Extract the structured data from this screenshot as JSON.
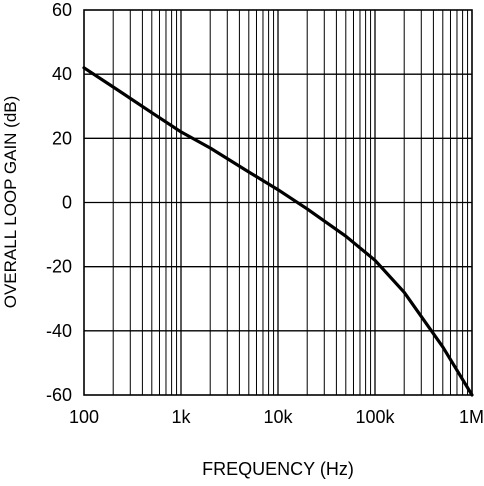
{
  "chart_data": {
    "type": "line",
    "title": "",
    "xlabel": "FREQUENCY (Hz)",
    "ylabel": "OVERALL LOOP GAIN (dB)",
    "x_scale": "log",
    "xlim": [
      100,
      1000000
    ],
    "ylim": [
      -60,
      60
    ],
    "grid": true,
    "x_ticks": [
      {
        "value": 100,
        "label": "100"
      },
      {
        "value": 1000,
        "label": "1k"
      },
      {
        "value": 10000,
        "label": "10k"
      },
      {
        "value": 100000,
        "label": "100k"
      },
      {
        "value": 1000000,
        "label": "1M"
      }
    ],
    "y_ticks": [
      {
        "value": 60,
        "label": "60"
      },
      {
        "value": 40,
        "label": "40"
      },
      {
        "value": 20,
        "label": "20"
      },
      {
        "value": 0,
        "label": "0"
      },
      {
        "value": -20,
        "label": "-20"
      },
      {
        "value": -40,
        "label": "-40"
      },
      {
        "value": -60,
        "label": "-60"
      }
    ],
    "series": [
      {
        "color": "#000000",
        "points": [
          {
            "x": 100,
            "y": 42
          },
          {
            "x": 200,
            "y": 36
          },
          {
            "x": 500,
            "y": 28
          },
          {
            "x": 1000,
            "y": 22
          },
          {
            "x": 2000,
            "y": 17
          },
          {
            "x": 5000,
            "y": 9.5
          },
          {
            "x": 10000,
            "y": 4
          },
          {
            "x": 20000,
            "y": -2
          },
          {
            "x": 50000,
            "y": -10.5
          },
          {
            "x": 100000,
            "y": -18
          },
          {
            "x": 200000,
            "y": -28
          },
          {
            "x": 500000,
            "y": -45
          },
          {
            "x": 1000000,
            "y": -60
          }
        ]
      }
    ]
  }
}
